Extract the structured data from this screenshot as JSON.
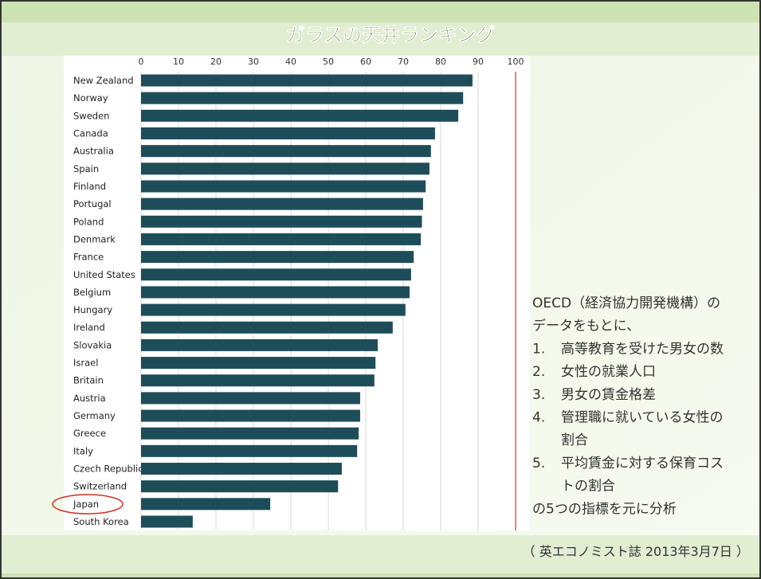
{
  "chart_data": {
    "type": "barh",
    "title": "ガラスの天井ランキング",
    "categories": [
      "New Zealand",
      "Norway",
      "Sweden",
      "Canada",
      "Australia",
      "Spain",
      "Finland",
      "Portugal",
      "Poland",
      "Denmark",
      "France",
      "United States",
      "Belgium",
      "Hungary",
      "Ireland",
      "Slovakia",
      "Israel",
      "Britain",
      "Austria",
      "Germany",
      "Greece",
      "Italy",
      "Czech Republic",
      "Switzerland",
      "Japan",
      "South Korea"
    ],
    "values": [
      88.5,
      86,
      84.7,
      78.5,
      77.4,
      77,
      76,
      75.3,
      75,
      74.7,
      72.8,
      72.1,
      71.7,
      70.6,
      67.2,
      63.2,
      62.6,
      62.3,
      58.5,
      58.5,
      58.1,
      57.7,
      53.6,
      52.6,
      34.5,
      13.8
    ],
    "color": "#1e4d5a",
    "xlim": [
      0,
      100
    ],
    "xticks": [
      0,
      10,
      20,
      30,
      40,
      50,
      60,
      70,
      80,
      90,
      100
    ],
    "grid": true,
    "intro": [
      "OECD（経済協力開発機構）の",
      "データをもとに、"
    ],
    "items": [
      {
        "number": "1.",
        "lines": [
          "高等教育を受けた男女の数"
        ]
      },
      {
        "number": "2.",
        "lines": [
          "女性の就業人口"
        ]
      },
      {
        "number": "3.",
        "lines": [
          "男女の賃金格差"
        ]
      },
      {
        "number": "4.",
        "lines": [
          "管理職に就いている女性の",
          "割合"
        ]
      },
      {
        "number": "5.",
        "lines": [
          "平均賃金に対する保育コス",
          "トの割合"
        ]
      }
    ],
    "outro": "の5つの指標を元に分析",
    "source": "（ 英エコノミスト誌 2013年3月7日 ）"
  }
}
